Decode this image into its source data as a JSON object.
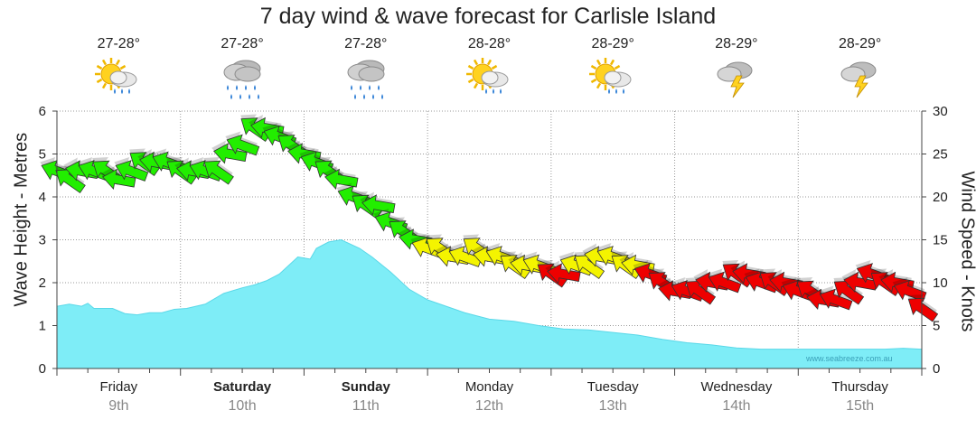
{
  "title": "7 day wind & wave forecast for Carlisle Island",
  "left_axis_label": "Wave Height - Metres",
  "right_axis_label": "Wind Speed - Knots",
  "watermark": "www.seabreeze.com.au",
  "days": [
    {
      "name": "Friday",
      "date": "9th",
      "bold": false,
      "temp": "27-28°",
      "icon": "sun-cloud-rain-icon"
    },
    {
      "name": "Saturday",
      "date": "10th",
      "bold": true,
      "temp": "27-28°",
      "icon": "heavy-rain-icon"
    },
    {
      "name": "Sunday",
      "date": "11th",
      "bold": true,
      "temp": "27-28°",
      "icon": "heavy-rain-icon"
    },
    {
      "name": "Monday",
      "date": "12th",
      "bold": false,
      "temp": "28-28°",
      "icon": "sun-cloud-rain-icon"
    },
    {
      "name": "Tuesday",
      "date": "13th",
      "bold": false,
      "temp": "28-29°",
      "icon": "sun-cloud-rain-icon"
    },
    {
      "name": "Wednesday",
      "date": "14th",
      "bold": false,
      "temp": "28-29°",
      "icon": "thunderstorm-icon"
    },
    {
      "name": "Thursday",
      "date": "15th",
      "bold": false,
      "temp": "28-29°",
      "icon": "thunderstorm-icon"
    }
  ],
  "colors": {
    "wave_fill": "#7eedf7",
    "wave_stroke": "#5ad8e8",
    "wind_light": "#22ee00",
    "wind_moderate": "#f4f400",
    "wind_strong": "#ee0000",
    "grid": "#9a9a9a"
  },
  "chart_data": {
    "type": "area",
    "x_unit": "days",
    "xlim": [
      0,
      7
    ],
    "left_axis": {
      "label": "Wave Height - Metres",
      "ylim": [
        0,
        6
      ],
      "ticks": [
        0,
        1,
        2,
        3,
        4,
        5,
        6
      ]
    },
    "right_axis": {
      "label": "Wind Speed - Knots",
      "ylim": [
        0,
        30
      ],
      "ticks": [
        0,
        5,
        10,
        15,
        20,
        25,
        30
      ]
    },
    "grid": true,
    "wave_height": {
      "x": [
        0,
        0.1,
        0.2,
        0.25,
        0.3,
        0.45,
        0.55,
        0.65,
        0.75,
        0.85,
        0.95,
        1.05,
        1.2,
        1.35,
        1.5,
        1.6,
        1.7,
        1.8,
        1.95,
        2.05,
        2.1,
        2.2,
        2.3,
        2.45,
        2.55,
        2.7,
        2.85,
        3.0,
        3.15,
        3.3,
        3.5,
        3.7,
        3.9,
        4.1,
        4.3,
        4.5,
        4.7,
        4.9,
        5.1,
        5.3,
        5.5,
        5.7,
        5.9,
        6.1,
        6.3,
        6.5,
        6.7,
        6.85,
        7.0
      ],
      "values": [
        1.45,
        1.5,
        1.45,
        1.52,
        1.4,
        1.4,
        1.28,
        1.25,
        1.3,
        1.3,
        1.38,
        1.4,
        1.5,
        1.75,
        1.88,
        1.95,
        2.05,
        2.2,
        2.6,
        2.55,
        2.8,
        2.95,
        3.0,
        2.8,
        2.6,
        2.25,
        1.85,
        1.6,
        1.45,
        1.3,
        1.15,
        1.1,
        1.0,
        0.92,
        0.9,
        0.84,
        0.78,
        0.68,
        0.6,
        0.55,
        0.48,
        0.45,
        0.45,
        0.45,
        0.45,
        0.45,
        0.45,
        0.47,
        0.45
      ]
    },
    "wind": {
      "x": [
        0.0,
        0.1,
        0.2,
        0.3,
        0.4,
        0.5,
        0.6,
        0.7,
        0.8,
        0.9,
        1.0,
        1.1,
        1.2,
        1.3,
        1.4,
        1.5,
        1.6,
        1.7,
        1.8,
        1.9,
        2.0,
        2.1,
        2.2,
        2.3,
        2.4,
        2.5,
        2.6,
        2.7,
        2.8,
        2.9,
        3.0,
        3.1,
        3.2,
        3.3,
        3.4,
        3.5,
        3.6,
        3.7,
        3.8,
        3.9,
        4.0,
        4.1,
        4.2,
        4.3,
        4.4,
        4.5,
        4.6,
        4.7,
        4.8,
        4.9,
        5.0,
        5.1,
        5.2,
        5.3,
        5.4,
        5.5,
        5.6,
        5.7,
        5.8,
        5.9,
        6.0,
        6.1,
        6.2,
        6.3,
        6.4,
        6.5,
        6.6,
        6.7,
        6.8,
        6.9,
        7.0
      ],
      "knots": [
        23,
        22,
        23,
        23,
        23,
        22,
        23,
        24,
        24,
        24,
        23,
        23,
        23,
        23,
        25,
        26,
        28,
        28,
        27,
        26,
        25,
        24,
        23,
        22,
        20,
        19,
        19,
        17,
        16,
        15,
        14,
        14,
        13,
        13,
        14,
        13,
        13,
        12,
        12,
        12,
        11,
        11,
        12,
        12,
        13,
        13,
        12,
        12,
        11,
        10,
        9,
        9,
        9,
        10,
        10,
        11,
        11,
        10,
        10,
        10,
        9,
        9,
        8,
        8,
        9,
        10,
        11,
        10,
        10,
        9,
        7
      ]
    }
  }
}
